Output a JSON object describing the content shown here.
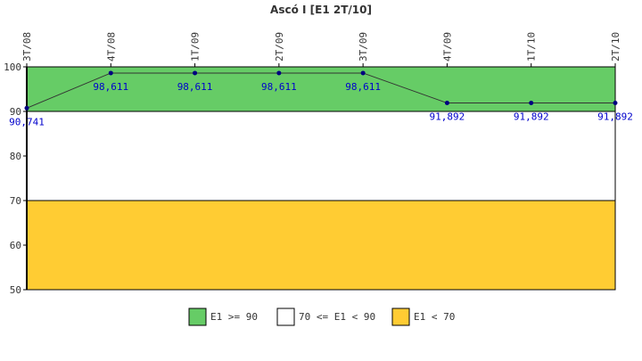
{
  "chart_data": {
    "type": "line",
    "title": "Ascó I [E1 2T/10]",
    "categories": [
      "3T/08",
      "4T/08",
      "1T/09",
      "2T/09",
      "3T/09",
      "4T/09",
      "1T/10",
      "2T/10"
    ],
    "series": [
      {
        "values": [
          90.741,
          98.611,
          98.611,
          98.611,
          98.611,
          91.892,
          91.892,
          91.892
        ],
        "labels": [
          "90,741",
          "98,611",
          "98,611",
          "98,611",
          "98,611",
          "91,892",
          "91,892",
          "91,892"
        ],
        "color": "#000080"
      }
    ],
    "ylim": [
      50,
      100
    ],
    "yticks": [
      "50",
      "60",
      "70",
      "80",
      "90",
      "100"
    ],
    "bands": [
      {
        "from": 90,
        "to": 100,
        "color": "#66cc66",
        "legend": "E1 >= 90"
      },
      {
        "from": 70,
        "to": 90,
        "color": "#ffffff",
        "legend": "70 <= E1 < 90"
      },
      {
        "from": 50,
        "to": 70,
        "color": "#ffcc33",
        "legend": "E1 < 70"
      }
    ],
    "legend_position": "bottom",
    "grid": false
  }
}
